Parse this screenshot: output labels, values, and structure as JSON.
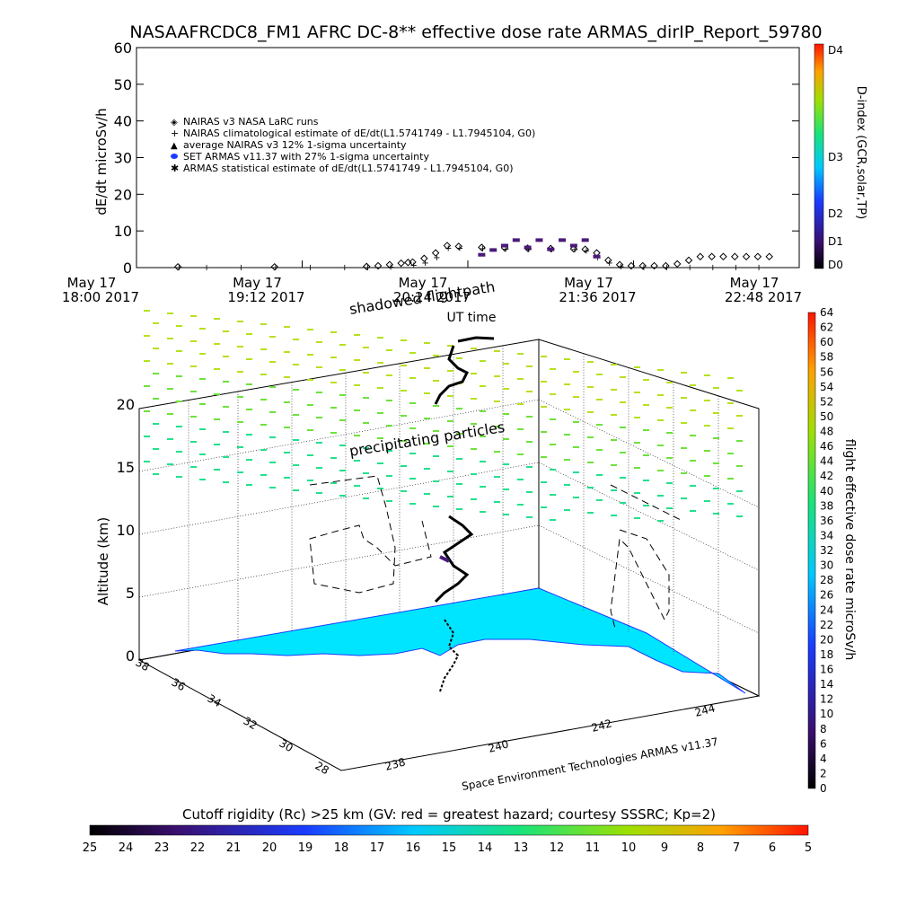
{
  "title": "NASAAFRCDC8_FM1 AFRC DC-8** effective dose rate ARMAS_dirIP_Report_59780",
  "colors": {
    "nairas": "#000000",
    "armas": "#4b1a7a",
    "terrain": "#00e5ff",
    "grid": "#000000"
  },
  "chart_data": [
    {
      "type": "scatter",
      "panel": "dose-rate-timeseries",
      "ylabel": "dE/dt microSv/h",
      "xlabel": "UT time",
      "ylim": [
        0,
        60
      ],
      "yticks": [
        "0",
        "10",
        "20",
        "30",
        "40",
        "50",
        "60"
      ],
      "xticks": [
        {
          "line1": "May 17",
          "line2": "18:00 2017"
        },
        {
          "line1": "May 17",
          "line2": "19:12 2017"
        },
        {
          "line1": "May 17",
          "line2": "20:24 2017"
        },
        {
          "line1": "May 17",
          "line2": "21:36 2017"
        },
        {
          "line1": "May 17",
          "line2": "22:48 2017"
        }
      ],
      "xlim_minutes_after_1800": [
        0,
        288
      ],
      "legend_position": "upper-left",
      "legend": [
        "NAIRAS v3 NASA LaRC runs",
        "NAIRAS climatological estimate of dE/dt(L1.5741749 - L1.7945104, G0)",
        "average NAIRAS v3 12% 1-sigma uncertainty",
        "SET ARMAS v11.37 with 27% 1-sigma uncertainty",
        "ARMAS statistical estimate of dE/dt(L1.5741749 - L1.7945104, G0)"
      ],
      "series": [
        {
          "name": "NAIRAS climatological estimate of dE/dt(L1.5741749 - L1.7945104, G0)",
          "x": [
            18,
            30,
            45,
            60,
            75,
            90,
            100,
            110,
            120,
            125,
            130,
            135,
            140,
            150,
            160,
            170,
            180,
            190,
            195,
            200,
            205,
            210,
            220,
            230,
            240,
            250,
            260,
            270
          ],
          "y": [
            0.2,
            0.2,
            0.2,
            0.2,
            0.2,
            0.2,
            0.3,
            0.4,
            0.8,
            1.5,
            3,
            5.5,
            5.5,
            5.4,
            5.3,
            5.2,
            5.2,
            5.1,
            4.8,
            3,
            1.5,
            0.5,
            0.3,
            0.3,
            0.3,
            0.3,
            0.3,
            0.3
          ]
        },
        {
          "name": "NAIRAS v3 NASA LaRC runs",
          "x": [
            18,
            60,
            100,
            105,
            110,
            115,
            118,
            120,
            125,
            130,
            135,
            140,
            150,
            160,
            170,
            180,
            190,
            195,
            200,
            205,
            210,
            215,
            220,
            225,
            230,
            235,
            240,
            245,
            250,
            255,
            260,
            265,
            270,
            275
          ],
          "y": [
            0.2,
            0.2,
            0.3,
            0.5,
            0.8,
            1.2,
            1.4,
            1.5,
            2.5,
            4,
            6,
            5.8,
            5.5,
            5.4,
            5.3,
            5.2,
            5.1,
            5,
            4,
            2,
            0.8,
            0.5,
            0.5,
            0.5,
            0.5,
            1,
            2,
            3,
            3,
            3,
            3,
            3,
            3,
            3
          ]
        },
        {
          "name": "SET ARMAS v11.37 with 27% 1-sigma uncertainty",
          "x": [
            150,
            155,
            160,
            165,
            170,
            175,
            180,
            185,
            190,
            195,
            200
          ],
          "y": [
            3.5,
            4.8,
            6,
            7.5,
            5.5,
            7.5,
            5,
            7.5,
            6,
            7.5,
            3
          ]
        }
      ],
      "dindex_colorbar": {
        "label": "D-index (GCR,solar,TP)",
        "ticks": [
          "D0",
          "D1",
          "D2",
          "D3",
          "D4"
        ]
      }
    },
    {
      "type": "scatter",
      "panel": "3d-flight-path",
      "zlabel": "Altitude (km)",
      "zticks": [
        "0",
        "5",
        "10",
        "15",
        "20"
      ],
      "lat_ticks": [
        "28",
        "30",
        "32",
        "34",
        "36",
        "38"
      ],
      "lon_ticks": [
        "238",
        "240",
        "242",
        "244"
      ],
      "annotations": [
        "shadowed flightpath",
        "precipitating particles"
      ],
      "credit": "Space Environment Technologies ARMAS v11.37",
      "dose_colorbar": {
        "label": "flight effective dose rate microSv/h",
        "ticks": [
          "0",
          "2",
          "4",
          "6",
          "8",
          "10",
          "12",
          "14",
          "16",
          "18",
          "20",
          "22",
          "24",
          "26",
          "28",
          "30",
          "32",
          "34",
          "36",
          "38",
          "40",
          "42",
          "44",
          "46",
          "48",
          "50",
          "52",
          "54",
          "56",
          "58",
          "60",
          "62",
          "64"
        ]
      }
    },
    {
      "type": "heatmap",
      "panel": "cutoff-rigidity-colorbar",
      "title": "Cutoff rigidity (Rc) >25 km (GV: red = greatest hazard; courtesy SSSRC; Kp=2)",
      "ticks": [
        "25",
        "24",
        "23",
        "22",
        "21",
        "20",
        "19",
        "18",
        "17",
        "16",
        "15",
        "14",
        "13",
        "12",
        "11",
        "10",
        "9",
        "8",
        "7",
        "6",
        "5"
      ]
    }
  ]
}
